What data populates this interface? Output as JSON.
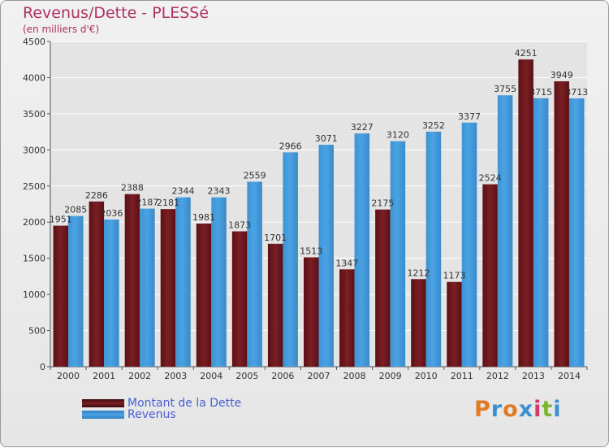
{
  "header": {
    "title": "Revenus/Dette - PLESSé",
    "subtitle": "(en milliers d'€)"
  },
  "logo": {
    "text": "Proxiti",
    "colors": [
      "#e07b24",
      "#3b8fd1",
      "#e07b24",
      "#3b8fd1",
      "#d23a6c",
      "#7ab62e",
      "#3b8fd1"
    ]
  },
  "colors": {
    "dette": "#7a1f24",
    "revenus": "#4aa3e2",
    "axis_text": "#333333",
    "grid": "#ffffff"
  },
  "chart_data": {
    "type": "bar",
    "title": "Revenus/Dette - PLESSé",
    "subtitle": "(en milliers d'€)",
    "categories": [
      "2000",
      "2001",
      "2002",
      "2003",
      "2004",
      "2005",
      "2006",
      "2007",
      "2008",
      "2009",
      "2010",
      "2011",
      "2012",
      "2013",
      "2014"
    ],
    "series": [
      {
        "name": "Montant de la Dette",
        "values": [
          1951,
          2286,
          2388,
          2181,
          1981,
          1873,
          1701,
          1513,
          1347,
          2175,
          1212,
          1173,
          2524,
          4251,
          3949
        ],
        "labels": [
          "1951",
          "2286",
          "2388",
          "2181",
          "1981",
          "1873",
          "1701",
          "1513",
          "1347",
          "2175",
          "1212",
          "1173",
          "2524",
          "4251",
          "3949"
        ]
      },
      {
        "name": "Revenus",
        "values": [
          2085,
          2036,
          2187,
          2344,
          2343,
          2559,
          2966,
          3071,
          3227,
          3120,
          3252,
          3377,
          3755,
          3715,
          3713
        ],
        "labels": [
          "2085",
          "2036",
          "2187",
          "2344",
          "2343",
          "2559",
          "2966",
          "3071",
          "3227",
          "3120",
          "3252",
          "3377",
          "3755",
          "3715",
          "3713"
        ]
      }
    ],
    "ylim": [
      0,
      4500
    ],
    "yticks": [
      "0",
      "500",
      "1000",
      "1500",
      "2000",
      "2500",
      "3000",
      "3500",
      "4000",
      "4500"
    ],
    "grid": true,
    "legend": "bottom-left"
  }
}
